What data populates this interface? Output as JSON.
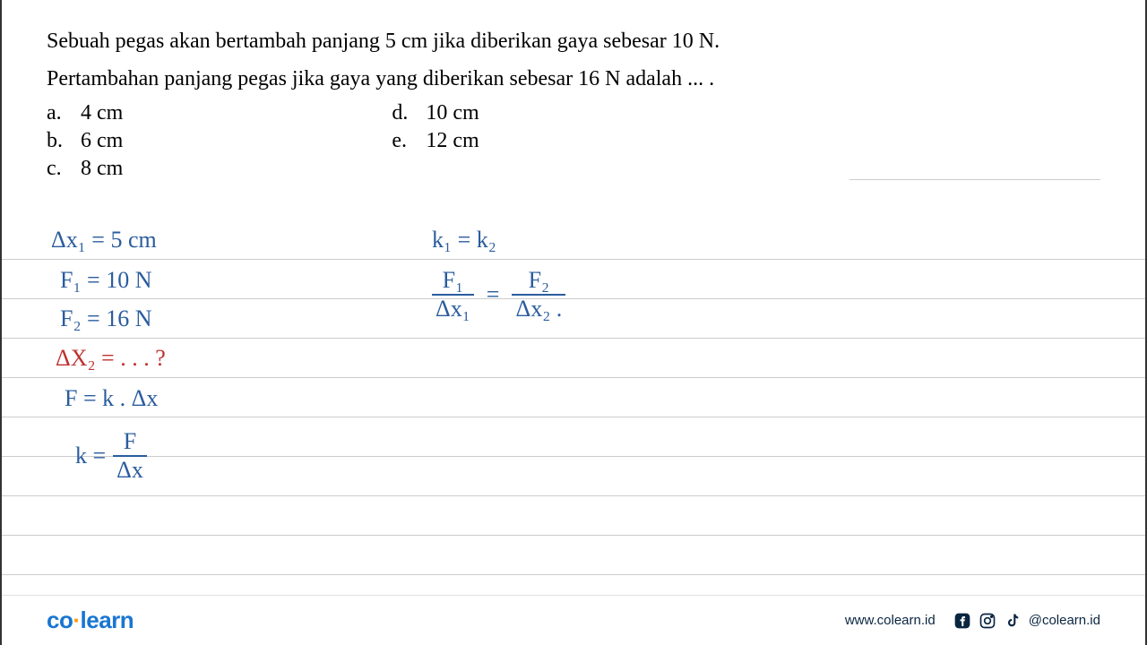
{
  "question": {
    "line1": "Sebuah pegas akan bertambah panjang 5 cm jika diberikan gaya sebesar 10 N.",
    "line2": "Pertambahan panjang pegas jika gaya yang diberikan sebesar 16 N adalah ... ."
  },
  "options": {
    "a": {
      "label": "a.",
      "value": "4 cm"
    },
    "b": {
      "label": "b.",
      "value": "6 cm"
    },
    "c": {
      "label": "c.",
      "value": "8 cm"
    },
    "d": {
      "label": "d.",
      "value": "10 cm"
    },
    "e": {
      "label": "e.",
      "value": "12 cm"
    }
  },
  "handwriting": {
    "dx1": "Δx₁ = 5 cm",
    "f1": "F₁ = 10 N",
    "f2": "F₂ = 16 N",
    "dx2": "ΔX₂ = . . . ?",
    "hooke": "F = k . Δx",
    "k_eq": {
      "lhs": "k =",
      "num": "F",
      "den": "Δx"
    },
    "k1k2": "k₁ = k₂",
    "ratio": {
      "num1": "F₁",
      "den1": "Δx₁",
      "eq": "=",
      "num2": "F₂",
      "den2": "Δx₂ ."
    }
  },
  "colors": {
    "blue": "#2a5c9e",
    "red": "#c03030",
    "ruled_line": "#cccccc",
    "brand_blue": "#1976d2",
    "brand_orange": "#ff9800",
    "footer_text": "#0a2540"
  },
  "layout": {
    "line_spacing": 44,
    "line_count": 9
  },
  "footer": {
    "logo_prefix": "co",
    "logo_suffix": "learn",
    "url": "www.colearn.id",
    "handle": "@colearn.id"
  }
}
